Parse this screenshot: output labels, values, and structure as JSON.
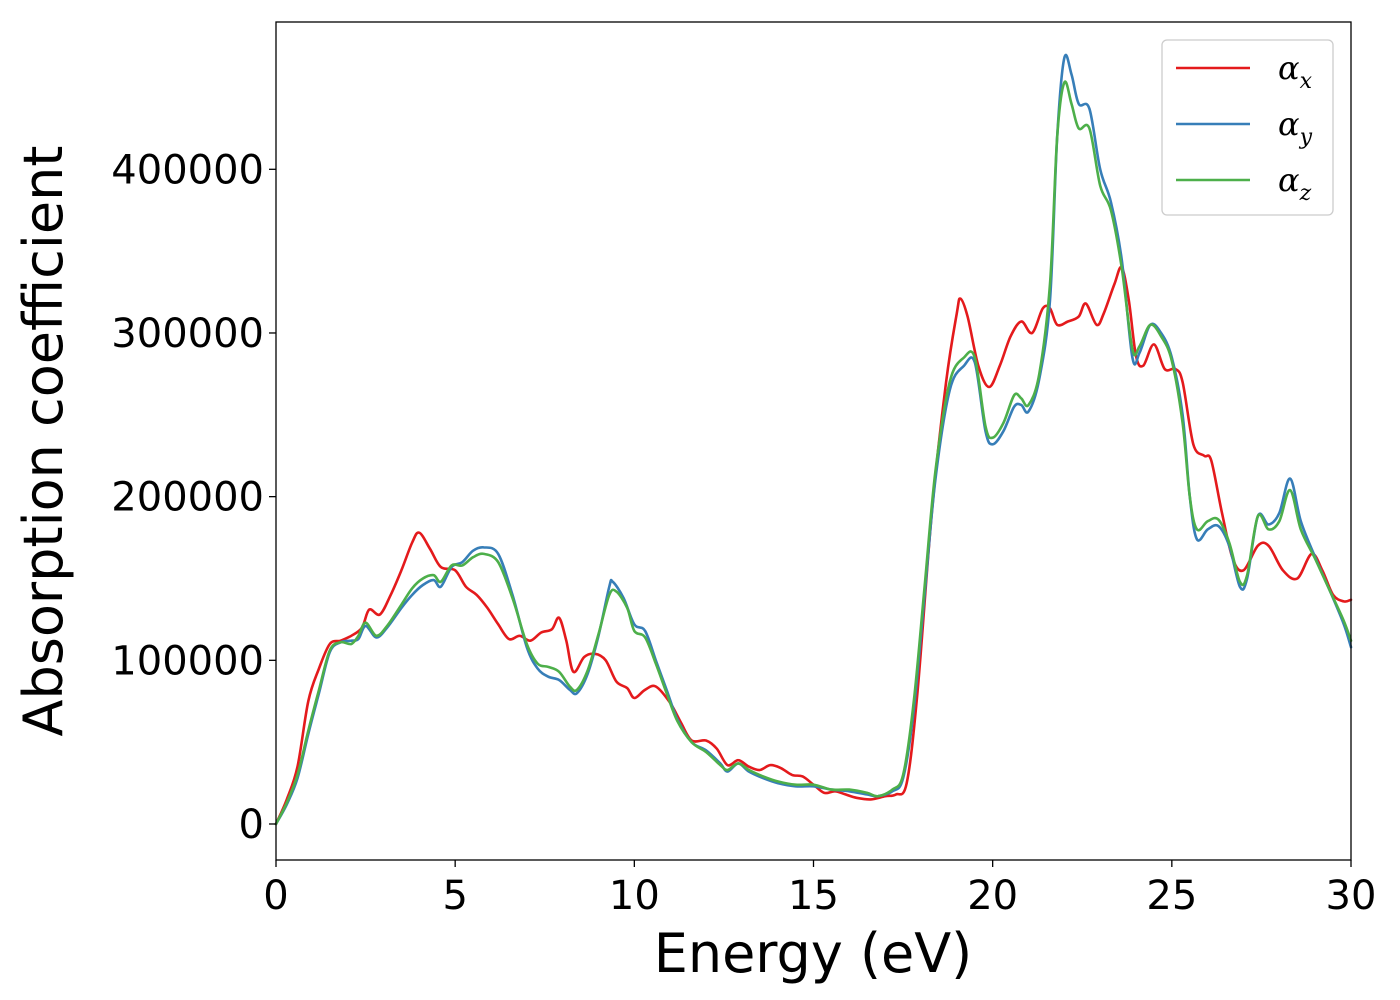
{
  "chart_data": {
    "type": "line",
    "xlabel": "Energy (eV)",
    "ylabel": "Absorption coefficient",
    "xlim": [
      0,
      30
    ],
    "ylim": [
      -22000,
      490000
    ],
    "xticks": [
      0,
      5,
      10,
      15,
      20,
      25,
      30
    ],
    "xtick_labels": [
      "0",
      "5",
      "10",
      "15",
      "20",
      "25",
      "30"
    ],
    "yticks": [
      0,
      100000,
      200000,
      300000,
      400000
    ],
    "ytick_labels": [
      "0",
      "100000",
      "200000",
      "300000",
      "400000"
    ],
    "grid": false,
    "legend_position": "top-right",
    "series": [
      {
        "name": "αx",
        "label_base": "α",
        "label_sub": "x",
        "color": "#e41a1c",
        "points": [
          [
            0,
            0
          ],
          [
            0.3,
            15000
          ],
          [
            0.6,
            35000
          ],
          [
            0.9,
            75000
          ],
          [
            1.2,
            95000
          ],
          [
            1.5,
            110000
          ],
          [
            1.8,
            112000
          ],
          [
            2.1,
            115000
          ],
          [
            2.4,
            120000
          ],
          [
            2.6,
            131000
          ],
          [
            2.9,
            128000
          ],
          [
            3.2,
            140000
          ],
          [
            3.5,
            155000
          ],
          [
            3.8,
            172000
          ],
          [
            4.0,
            178000
          ],
          [
            4.3,
            168000
          ],
          [
            4.6,
            157000
          ],
          [
            5.0,
            155000
          ],
          [
            5.3,
            145000
          ],
          [
            5.6,
            140000
          ],
          [
            5.9,
            132000
          ],
          [
            6.2,
            122000
          ],
          [
            6.5,
            113000
          ],
          [
            6.8,
            115000
          ],
          [
            7.1,
            112000
          ],
          [
            7.4,
            117000
          ],
          [
            7.7,
            119000
          ],
          [
            7.9,
            126000
          ],
          [
            8.1,
            112000
          ],
          [
            8.3,
            93000
          ],
          [
            8.6,
            102000
          ],
          [
            8.9,
            104000
          ],
          [
            9.2,
            100000
          ],
          [
            9.5,
            87000
          ],
          [
            9.8,
            83000
          ],
          [
            10.0,
            77000
          ],
          [
            10.3,
            82000
          ],
          [
            10.6,
            84000
          ],
          [
            11.0,
            74000
          ],
          [
            11.3,
            62000
          ],
          [
            11.6,
            51000
          ],
          [
            12.0,
            51000
          ],
          [
            12.3,
            46000
          ],
          [
            12.6,
            36000
          ],
          [
            12.9,
            39000
          ],
          [
            13.2,
            35000
          ],
          [
            13.5,
            33000
          ],
          [
            13.8,
            36000
          ],
          [
            14.1,
            34000
          ],
          [
            14.4,
            30000
          ],
          [
            14.7,
            29000
          ],
          [
            15.0,
            24000
          ],
          [
            15.3,
            19000
          ],
          [
            15.6,
            20000
          ],
          [
            15.9,
            18000
          ],
          [
            16.2,
            16000
          ],
          [
            16.6,
            15000
          ],
          [
            17.0,
            17000
          ],
          [
            17.3,
            18000
          ],
          [
            17.6,
            25000
          ],
          [
            17.9,
            80000
          ],
          [
            18.3,
            190000
          ],
          [
            18.7,
            270000
          ],
          [
            19.0,
            312000
          ],
          [
            19.1,
            321000
          ],
          [
            19.3,
            310000
          ],
          [
            19.6,
            280000
          ],
          [
            19.9,
            267000
          ],
          [
            20.2,
            280000
          ],
          [
            20.5,
            298000
          ],
          [
            20.8,
            307000
          ],
          [
            21.1,
            300000
          ],
          [
            21.4,
            315000
          ],
          [
            21.6,
            315000
          ],
          [
            21.8,
            305000
          ],
          [
            22.1,
            307000
          ],
          [
            22.4,
            310000
          ],
          [
            22.6,
            318000
          ],
          [
            22.9,
            305000
          ],
          [
            23.1,
            312000
          ],
          [
            23.4,
            330000
          ],
          [
            23.6,
            340000
          ],
          [
            23.8,
            320000
          ],
          [
            24.0,
            286000
          ],
          [
            24.2,
            280000
          ],
          [
            24.5,
            293000
          ],
          [
            24.8,
            278000
          ],
          [
            25.1,
            278000
          ],
          [
            25.3,
            270000
          ],
          [
            25.6,
            232000
          ],
          [
            25.9,
            225000
          ],
          [
            26.1,
            222000
          ],
          [
            26.4,
            190000
          ],
          [
            26.7,
            162000
          ],
          [
            27.0,
            155000
          ],
          [
            27.4,
            170000
          ],
          [
            27.7,
            170000
          ],
          [
            28.1,
            155000
          ],
          [
            28.5,
            150000
          ],
          [
            28.9,
            165000
          ],
          [
            29.2,
            155000
          ],
          [
            29.5,
            140000
          ],
          [
            29.8,
            136000
          ],
          [
            30.0,
            137000
          ]
        ]
      },
      {
        "name": "αy",
        "label_base": "α",
        "label_sub": "y",
        "color": "#377eb8",
        "points": [
          [
            0,
            0
          ],
          [
            0.3,
            12000
          ],
          [
            0.6,
            28000
          ],
          [
            0.9,
            55000
          ],
          [
            1.2,
            80000
          ],
          [
            1.5,
            105000
          ],
          [
            1.8,
            111000
          ],
          [
            2.1,
            112000
          ],
          [
            2.3,
            113000
          ],
          [
            2.5,
            121000
          ],
          [
            2.8,
            114000
          ],
          [
            3.1,
            120000
          ],
          [
            3.5,
            132000
          ],
          [
            3.8,
            140000
          ],
          [
            4.1,
            146000
          ],
          [
            4.4,
            149000
          ],
          [
            4.6,
            145000
          ],
          [
            4.9,
            157000
          ],
          [
            5.2,
            160000
          ],
          [
            5.5,
            167000
          ],
          [
            5.8,
            169000
          ],
          [
            6.2,
            165000
          ],
          [
            6.6,
            140000
          ],
          [
            7.0,
            108000
          ],
          [
            7.3,
            95000
          ],
          [
            7.6,
            90000
          ],
          [
            7.9,
            88000
          ],
          [
            8.2,
            82000
          ],
          [
            8.4,
            80000
          ],
          [
            8.7,
            92000
          ],
          [
            9.0,
            115000
          ],
          [
            9.3,
            145000
          ],
          [
            9.4,
            148000
          ],
          [
            9.7,
            138000
          ],
          [
            10.0,
            122000
          ],
          [
            10.3,
            118000
          ],
          [
            10.6,
            100000
          ],
          [
            10.9,
            82000
          ],
          [
            11.2,
            64000
          ],
          [
            11.6,
            50000
          ],
          [
            12.0,
            45000
          ],
          [
            12.4,
            37000
          ],
          [
            12.6,
            32000
          ],
          [
            12.9,
            37000
          ],
          [
            13.2,
            32000
          ],
          [
            13.6,
            28000
          ],
          [
            14.0,
            25000
          ],
          [
            14.5,
            23000
          ],
          [
            15.0,
            23000
          ],
          [
            15.5,
            21000
          ],
          [
            16.0,
            20000
          ],
          [
            16.5,
            18000
          ],
          [
            16.8,
            17000
          ],
          [
            17.2,
            20000
          ],
          [
            17.5,
            28000
          ],
          [
            17.8,
            70000
          ],
          [
            18.1,
            140000
          ],
          [
            18.4,
            210000
          ],
          [
            18.8,
            265000
          ],
          [
            19.2,
            280000
          ],
          [
            19.5,
            282000
          ],
          [
            19.8,
            240000
          ],
          [
            20.0,
            232000
          ],
          [
            20.3,
            240000
          ],
          [
            20.6,
            255000
          ],
          [
            20.8,
            256000
          ],
          [
            21.0,
            252000
          ],
          [
            21.3,
            272000
          ],
          [
            21.6,
            320000
          ],
          [
            21.8,
            420000
          ],
          [
            22.0,
            468000
          ],
          [
            22.2,
            458000
          ],
          [
            22.4,
            440000
          ],
          [
            22.7,
            437000
          ],
          [
            23.0,
            400000
          ],
          [
            23.3,
            380000
          ],
          [
            23.6,
            345000
          ],
          [
            23.9,
            285000
          ],
          [
            24.1,
            288000
          ],
          [
            24.4,
            305000
          ],
          [
            24.7,
            300000
          ],
          [
            25.0,
            285000
          ],
          [
            25.3,
            250000
          ],
          [
            25.5,
            200000
          ],
          [
            25.7,
            174000
          ],
          [
            26.0,
            180000
          ],
          [
            26.3,
            182000
          ],
          [
            26.6,
            170000
          ],
          [
            26.9,
            145000
          ],
          [
            27.1,
            150000
          ],
          [
            27.4,
            188000
          ],
          [
            27.7,
            183000
          ],
          [
            28.0,
            190000
          ],
          [
            28.3,
            211000
          ],
          [
            28.6,
            185000
          ],
          [
            29.0,
            163000
          ],
          [
            29.4,
            143000
          ],
          [
            29.8,
            122000
          ],
          [
            30.0,
            108000
          ]
        ]
      },
      {
        "name": "αz",
        "label_base": "α",
        "label_sub": "z",
        "color": "#4daf4a",
        "points": [
          [
            0,
            0
          ],
          [
            0.3,
            13000
          ],
          [
            0.6,
            30000
          ],
          [
            0.9,
            57000
          ],
          [
            1.2,
            82000
          ],
          [
            1.5,
            106000
          ],
          [
            1.8,
            111000
          ],
          [
            2.1,
            110000
          ],
          [
            2.3,
            115000
          ],
          [
            2.5,
            123000
          ],
          [
            2.8,
            115000
          ],
          [
            3.1,
            121000
          ],
          [
            3.5,
            134000
          ],
          [
            3.8,
            144000
          ],
          [
            4.1,
            150000
          ],
          [
            4.4,
            152000
          ],
          [
            4.6,
            148000
          ],
          [
            4.9,
            158000
          ],
          [
            5.2,
            158000
          ],
          [
            5.5,
            163000
          ],
          [
            5.8,
            165000
          ],
          [
            6.2,
            160000
          ],
          [
            6.6,
            138000
          ],
          [
            7.0,
            110000
          ],
          [
            7.3,
            98000
          ],
          [
            7.6,
            96000
          ],
          [
            7.9,
            93000
          ],
          [
            8.2,
            84000
          ],
          [
            8.4,
            82000
          ],
          [
            8.7,
            94000
          ],
          [
            9.0,
            116000
          ],
          [
            9.3,
            140000
          ],
          [
            9.5,
            142000
          ],
          [
            9.8,
            132000
          ],
          [
            10.0,
            118000
          ],
          [
            10.3,
            114000
          ],
          [
            10.6,
            98000
          ],
          [
            10.9,
            80000
          ],
          [
            11.2,
            63000
          ],
          [
            11.6,
            50000
          ],
          [
            12.0,
            44000
          ],
          [
            12.4,
            36000
          ],
          [
            12.6,
            33000
          ],
          [
            12.9,
            37000
          ],
          [
            13.2,
            33000
          ],
          [
            13.6,
            29000
          ],
          [
            14.0,
            26000
          ],
          [
            14.5,
            24000
          ],
          [
            15.0,
            24000
          ],
          [
            15.5,
            21000
          ],
          [
            16.0,
            21000
          ],
          [
            16.5,
            19000
          ],
          [
            16.8,
            17000
          ],
          [
            17.2,
            21000
          ],
          [
            17.5,
            30000
          ],
          [
            17.8,
            75000
          ],
          [
            18.1,
            145000
          ],
          [
            18.4,
            215000
          ],
          [
            18.8,
            270000
          ],
          [
            19.2,
            285000
          ],
          [
            19.5,
            285000
          ],
          [
            19.8,
            243000
          ],
          [
            20.0,
            236000
          ],
          [
            20.3,
            245000
          ],
          [
            20.6,
            262000
          ],
          [
            20.8,
            260000
          ],
          [
            21.0,
            256000
          ],
          [
            21.3,
            275000
          ],
          [
            21.6,
            330000
          ],
          [
            21.8,
            420000
          ],
          [
            22.0,
            453000
          ],
          [
            22.2,
            440000
          ],
          [
            22.4,
            425000
          ],
          [
            22.7,
            425000
          ],
          [
            23.0,
            390000
          ],
          [
            23.3,
            375000
          ],
          [
            23.6,
            340000
          ],
          [
            23.9,
            290000
          ],
          [
            24.1,
            292000
          ],
          [
            24.4,
            305000
          ],
          [
            24.7,
            298000
          ],
          [
            25.0,
            283000
          ],
          [
            25.3,
            245000
          ],
          [
            25.5,
            200000
          ],
          [
            25.7,
            180000
          ],
          [
            26.0,
            185000
          ],
          [
            26.3,
            186000
          ],
          [
            26.6,
            172000
          ],
          [
            26.9,
            148000
          ],
          [
            27.1,
            152000
          ],
          [
            27.4,
            188000
          ],
          [
            27.7,
            180000
          ],
          [
            28.0,
            185000
          ],
          [
            28.3,
            204000
          ],
          [
            28.6,
            180000
          ],
          [
            29.0,
            162000
          ],
          [
            29.4,
            143000
          ],
          [
            29.8,
            124000
          ],
          [
            30.0,
            112000
          ]
        ]
      }
    ]
  }
}
